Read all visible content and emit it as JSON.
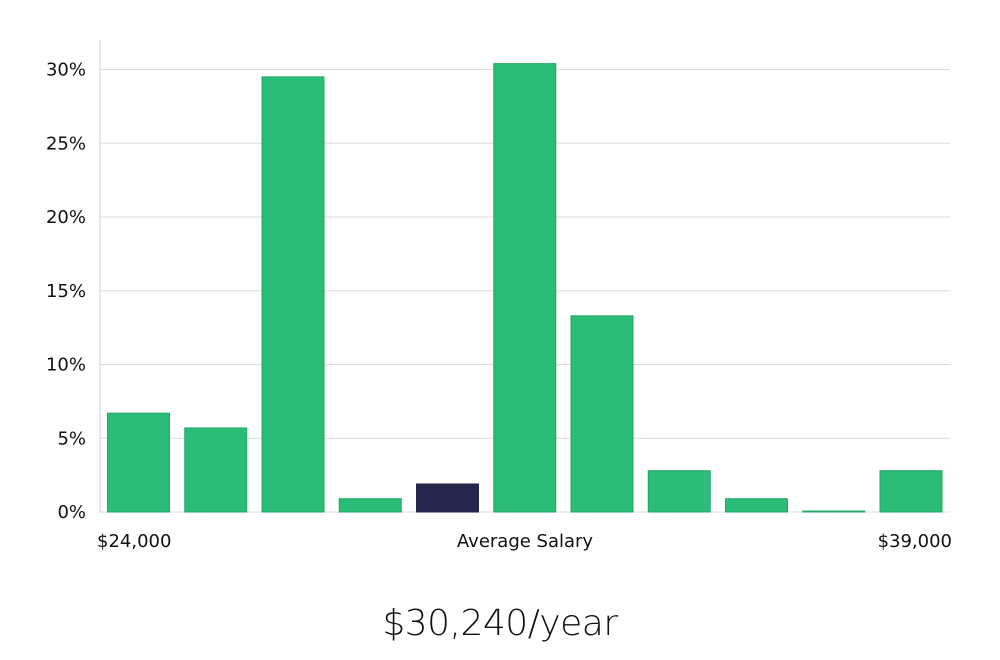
{
  "headline": "$30,240/year",
  "colors": {
    "bar": "#2bbd77",
    "bar_stroke": "#22a866",
    "highlight": "#25244a",
    "grid": "#dcdcdc",
    "text": "#111111"
  },
  "chart_data": {
    "type": "bar",
    "x_start_label": "$24,000",
    "x_center_label": "Average Salary",
    "x_end_label": "$39,000",
    "values": [
      6.7,
      5.7,
      29.5,
      0.9,
      1.9,
      30.4,
      13.3,
      2.8,
      0.9,
      0.05,
      2.8
    ],
    "highlight_index": 4,
    "ylim": [
      0,
      32
    ],
    "y_ticks": [
      0,
      5,
      10,
      15,
      20,
      25,
      30
    ],
    "y_tick_labels": [
      "0%",
      "5%",
      "10%",
      "15%",
      "20%",
      "25%",
      "30%"
    ],
    "grid": true,
    "legend": "none"
  }
}
